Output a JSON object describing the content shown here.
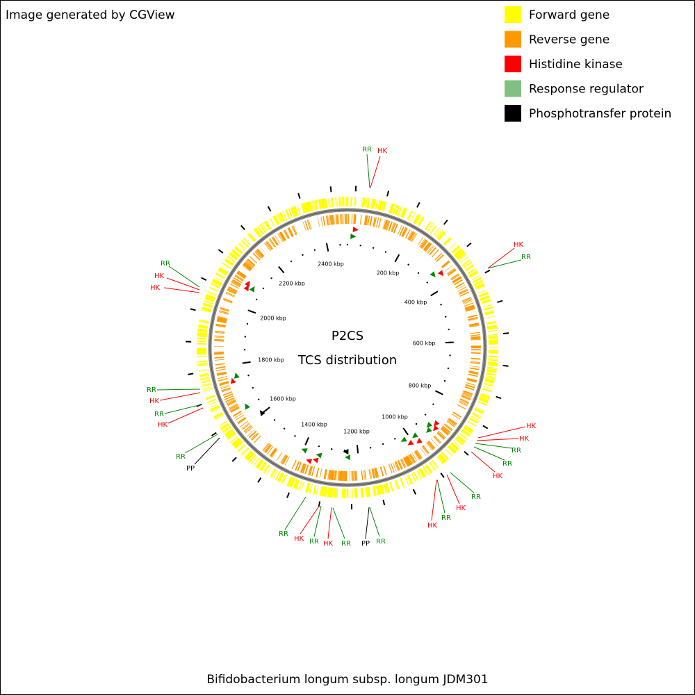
{
  "header": {
    "title": "Image generated by CGView"
  },
  "legend": [
    {
      "label": "Forward gene"
    },
    {
      "label": "Reverse gene"
    },
    {
      "label": "Histidine kinase"
    },
    {
      "label": "Response regulator"
    },
    {
      "label": "Phosphotransfer protein"
    }
  ],
  "center": {
    "title": "P2CS",
    "subtitle": "TCS distribution"
  },
  "ticks": [
    "200 kbp",
    "400 kbp",
    "600 kbp",
    "800 kbp",
    "1000 kbp",
    "1200 kbp",
    "1400 kbp",
    "1600 kbp",
    "1800 kbp",
    "2000 kbp",
    "2200 kbp",
    "2400 kbp"
  ],
  "features": [
    {
      "label": "RR"
    },
    {
      "label": "HK"
    },
    {
      "label": "HK"
    },
    {
      "label": "RR"
    },
    {
      "label": "RR"
    },
    {
      "label": "HK"
    },
    {
      "label": "HK"
    },
    {
      "label": "RR"
    },
    {
      "label": "HK"
    },
    {
      "label": "RR"
    },
    {
      "label": "HK"
    },
    {
      "label": "RR"
    },
    {
      "label": "PP"
    },
    {
      "label": "HK"
    },
    {
      "label": "HK"
    },
    {
      "label": "RR"
    },
    {
      "label": "RR"
    },
    {
      "label": "HK"
    },
    {
      "label": "RR"
    },
    {
      "label": "HK"
    },
    {
      "label": "RR"
    },
    {
      "label": "HK"
    },
    {
      "label": "RR"
    },
    {
      "label": "HK"
    },
    {
      "label": "RR"
    },
    {
      "label": "HK"
    },
    {
      "label": "RR"
    },
    {
      "label": "PP"
    },
    {
      "label": "RR"
    }
  ],
  "footer": {
    "title": "Bifidobacterium longum subsp. longum JDM301"
  }
}
